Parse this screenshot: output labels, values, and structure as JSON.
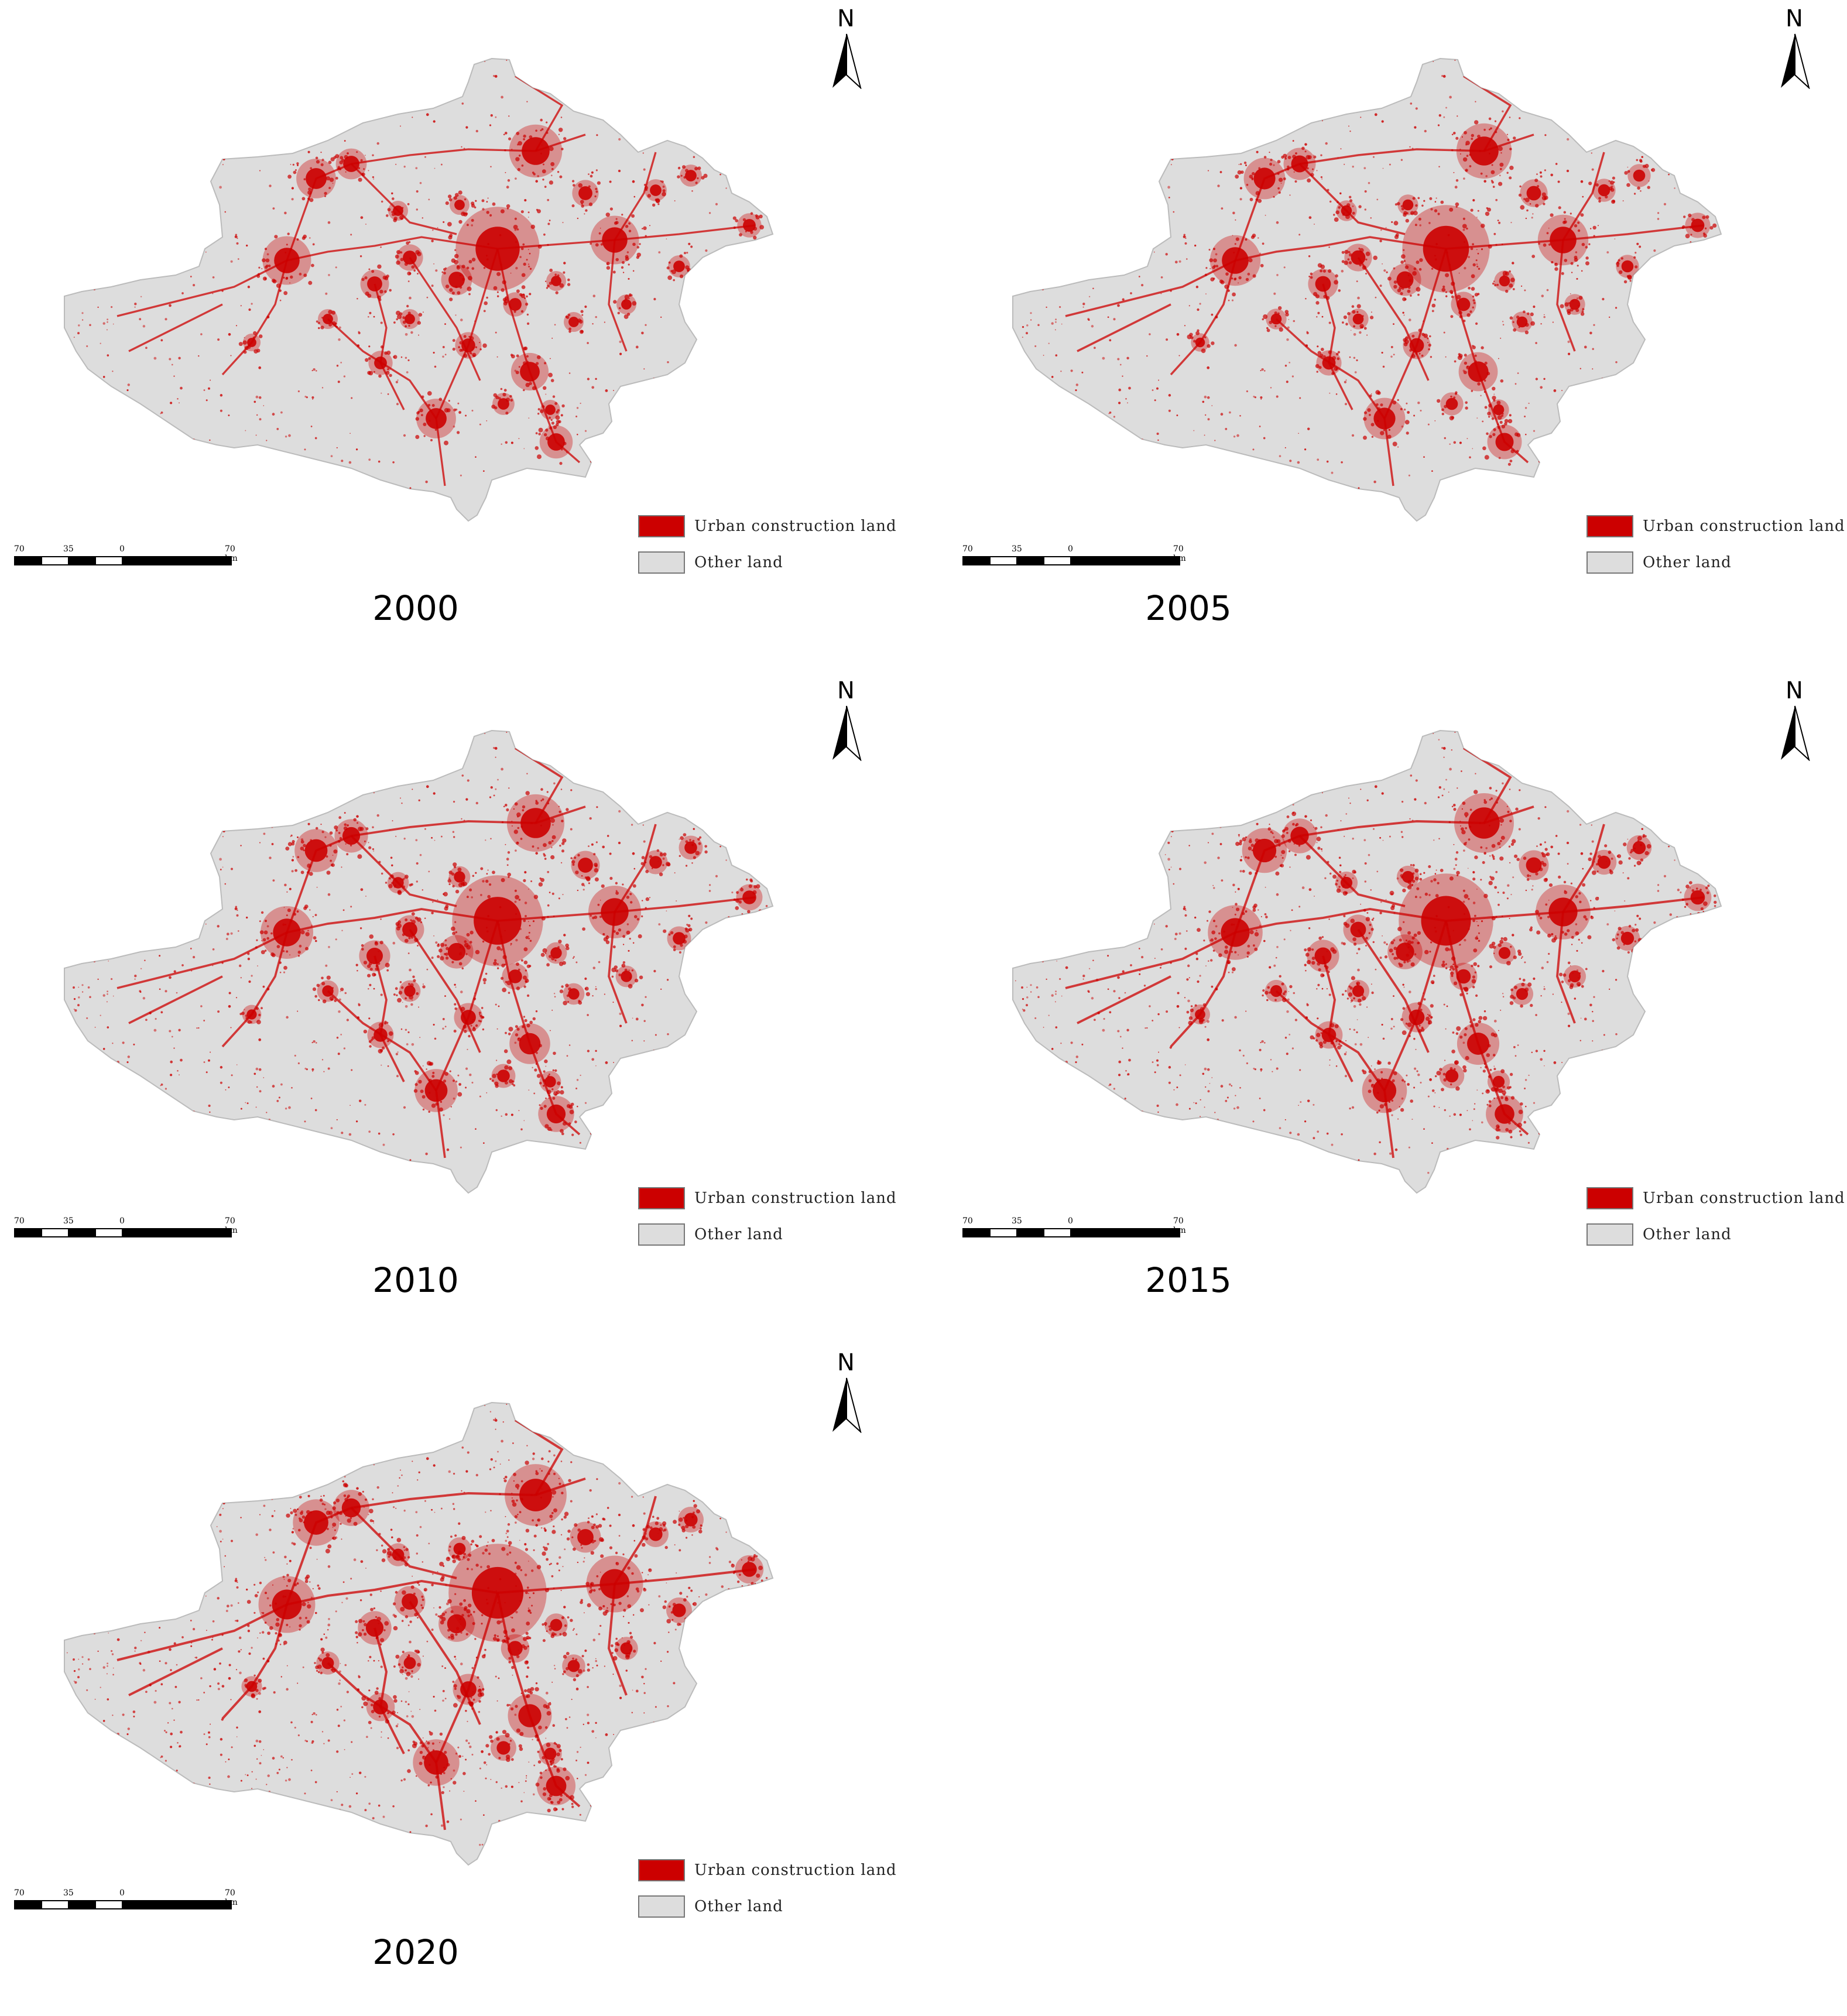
{
  "colors": {
    "urban": "#cc0000",
    "other": "#dddddd",
    "outline": "#bbbbbb"
  },
  "north_label": "N",
  "scale": {
    "labels": [
      "70",
      "35",
      "0",
      "70 km"
    ]
  },
  "legend": {
    "urban_label": "Urban construction land",
    "other_label": "Other land"
  },
  "maps": [
    {
      "year": "2000"
    },
    {
      "year": "2005"
    },
    {
      "year": "2010"
    },
    {
      "year": "2015"
    },
    {
      "year": "2020"
    }
  ]
}
